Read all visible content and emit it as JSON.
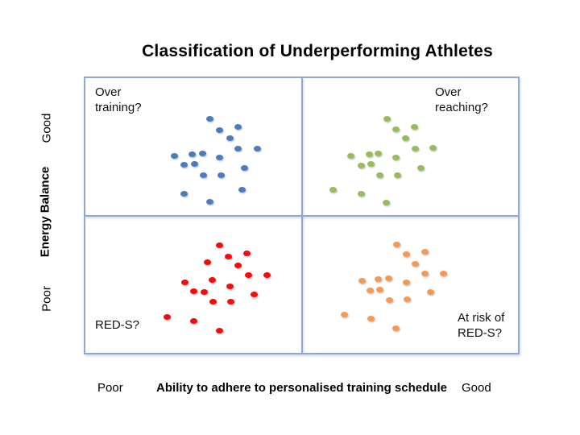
{
  "title": "Classification of Underperforming Athletes",
  "y_axis": {
    "label": "Energy Balance",
    "top_tick": "Good",
    "bottom_tick": "Poor"
  },
  "x_axis": {
    "label": "Ability to adhere to personalised training schedule",
    "left_tick": "Poor",
    "right_tick": "Good"
  },
  "quadrants": {
    "top_left": "Over training?",
    "top_right": "Over reaching?",
    "bottom_left": "RED-S?",
    "bottom_right": "At risk of RED-S?"
  },
  "colors": {
    "grid_line": "#8FA9D3",
    "blue_dots": "#4C7CB9",
    "green_dots": "#9ABB59",
    "red_dots": "#F80A0A",
    "orange_dots": "#F79952",
    "background": "#FFFFFF",
    "text": "#000000"
  },
  "chart_data": {
    "type": "scatter",
    "title": "Classification of Underperforming Athletes",
    "xlabel": "Ability to adhere to personalised training schedule",
    "ylabel": "Energy Balance",
    "x_tick_labels": [
      "Poor",
      "Good"
    ],
    "y_tick_labels": [
      "Poor",
      "Good"
    ],
    "axes_numeric": false,
    "coordinate_units": "screen pixels (y down); plot box x 104-645, y 95-440; quadrant dividers at x 374.5, y 267.5",
    "legend_position": "none",
    "grid": false,
    "series": [
      {
        "name": "Over training?",
        "quadrant": "top-left (Energy Balance good, adherence poor)",
        "color": "#4C7CB9",
        "points": [
          [
            260,
            147
          ],
          [
            272,
            161
          ],
          [
            295,
            157
          ],
          [
            285,
            171
          ],
          [
            295,
            184
          ],
          [
            319,
            184
          ],
          [
            216,
            193
          ],
          [
            238,
            191
          ],
          [
            251,
            190
          ],
          [
            272,
            195
          ],
          [
            228,
            204
          ],
          [
            241,
            203
          ],
          [
            303,
            208
          ],
          [
            252,
            217
          ],
          [
            274,
            217
          ],
          [
            300,
            235
          ],
          [
            228,
            240
          ],
          [
            260,
            250
          ]
        ]
      },
      {
        "name": "Over reaching?",
        "quadrant": "top-right (Energy Balance good, adherence good)",
        "color": "#9ABB59",
        "points": [
          [
            480,
            147
          ],
          [
            491,
            160
          ],
          [
            514,
            157
          ],
          [
            503,
            171
          ],
          [
            515,
            184
          ],
          [
            537,
            183
          ],
          [
            435,
            193
          ],
          [
            458,
            191
          ],
          [
            469,
            190
          ],
          [
            491,
            195
          ],
          [
            448,
            205
          ],
          [
            460,
            203
          ],
          [
            522,
            208
          ],
          [
            471,
            217
          ],
          [
            493,
            217
          ],
          [
            413,
            235
          ],
          [
            448,
            240
          ],
          [
            479,
            251
          ]
        ]
      },
      {
        "name": "RED-S?",
        "quadrant": "bottom-left (Energy Balance poor, adherence poor)",
        "color": "#F80A0A",
        "points": [
          [
            272,
            304
          ],
          [
            283,
            318
          ],
          [
            306,
            314
          ],
          [
            257,
            325
          ],
          [
            295,
            329
          ],
          [
            308,
            341
          ],
          [
            331,
            341
          ],
          [
            229,
            350
          ],
          [
            263,
            347
          ],
          [
            285,
            355
          ],
          [
            240,
            361
          ],
          [
            253,
            362
          ],
          [
            315,
            365
          ],
          [
            264,
            374
          ],
          [
            286,
            374
          ],
          [
            207,
            393
          ],
          [
            240,
            398
          ],
          [
            272,
            410
          ]
        ]
      },
      {
        "name": "At risk of RED-S?",
        "quadrant": "bottom-right (Energy Balance poor, adherence good)",
        "color": "#F79952",
        "points": [
          [
            492,
            303
          ],
          [
            504,
            315
          ],
          [
            527,
            312
          ],
          [
            515,
            327
          ],
          [
            527,
            339
          ],
          [
            550,
            339
          ],
          [
            449,
            348
          ],
          [
            469,
            346
          ],
          [
            482,
            345
          ],
          [
            504,
            350
          ],
          [
            459,
            360
          ],
          [
            471,
            359
          ],
          [
            534,
            362
          ],
          [
            483,
            372
          ],
          [
            505,
            371
          ],
          [
            427,
            390
          ],
          [
            460,
            395
          ],
          [
            491,
            407
          ]
        ]
      }
    ]
  }
}
